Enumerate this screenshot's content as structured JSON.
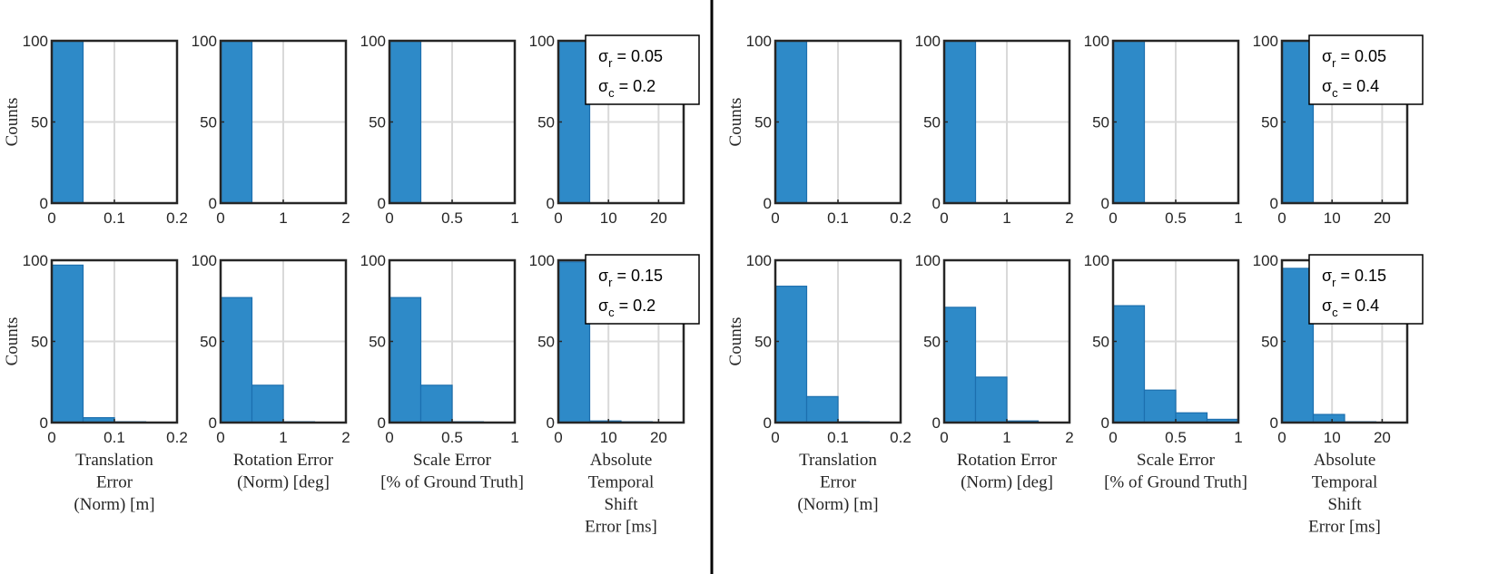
{
  "colors": {
    "bar_fill": "#2e8ac8",
    "bar_edge": "#1c6fae",
    "axis": "#262626",
    "grid": "#d9d9d9",
    "divider": "#000000"
  },
  "chart_data": [
    {
      "group": "left",
      "row": 0,
      "legend": {
        "sigma_r_value": "0.05",
        "sigma_c_value": "0.2"
      },
      "ylabel": "Counts",
      "panels": [
        {
          "type": "bar",
          "xlim": [
            0,
            0.2
          ],
          "ylim": [
            0,
            100
          ],
          "xticks": [
            "0",
            "0.1",
            "0.2"
          ],
          "yticks": [
            "0",
            "50",
            "100"
          ],
          "bin_width": 0.05,
          "bin_edges": [
            0,
            0.05
          ],
          "values": [
            100
          ]
        },
        {
          "type": "bar",
          "xlim": [
            0,
            2
          ],
          "ylim": [
            0,
            100
          ],
          "xticks": [
            "0",
            "1",
            "2"
          ],
          "yticks": [
            "0",
            "50",
            "100"
          ],
          "bin_width": 0.5,
          "bin_edges": [
            0,
            0.5
          ],
          "values": [
            100
          ]
        },
        {
          "type": "bar",
          "xlim": [
            0,
            1
          ],
          "ylim": [
            0,
            100
          ],
          "xticks": [
            "0",
            "0.5",
            "1"
          ],
          "yticks": [
            "0",
            "50",
            "100"
          ],
          "bin_width": 0.25,
          "bin_edges": [
            0,
            0.25
          ],
          "values": [
            100
          ]
        },
        {
          "type": "bar",
          "xlim": [
            0,
            25
          ],
          "ylim": [
            0,
            100
          ],
          "xticks": [
            "0",
            "10",
            "20"
          ],
          "yticks": [
            "0",
            "50",
            "100"
          ],
          "bin_width": 6.25,
          "bin_edges": [
            0,
            6.25
          ],
          "values": [
            100
          ]
        }
      ]
    },
    {
      "group": "left",
      "row": 1,
      "legend": {
        "sigma_r_value": "0.15",
        "sigma_c_value": "0.2"
      },
      "ylabel": "Counts",
      "panels": [
        {
          "type": "bar",
          "xlim": [
            0,
            0.2
          ],
          "ylim": [
            0,
            100
          ],
          "xticks": [
            "0",
            "0.1",
            "0.2"
          ],
          "yticks": [
            "0",
            "50",
            "100"
          ],
          "bin_width": 0.05,
          "bin_edges": [
            0,
            0.05,
            0.1,
            0.15
          ],
          "values": [
            97,
            3,
            0.5
          ],
          "xlabel": [
            "Translation",
            "Error",
            "(Norm) [m]"
          ]
        },
        {
          "type": "bar",
          "xlim": [
            0,
            2
          ],
          "ylim": [
            0,
            100
          ],
          "xticks": [
            "0",
            "1",
            "2"
          ],
          "yticks": [
            "0",
            "50",
            "100"
          ],
          "bin_width": 0.5,
          "bin_edges": [
            0,
            0.5,
            1.0
          ],
          "values": [
            77,
            23,
            0.5
          ],
          "xlabel": [
            "Rotation Error",
            "(Norm) [deg]"
          ]
        },
        {
          "type": "bar",
          "xlim": [
            0,
            1
          ],
          "ylim": [
            0,
            100
          ],
          "xticks": [
            "0",
            "0.5",
            "1"
          ],
          "yticks": [
            "0",
            "50",
            "100"
          ],
          "bin_width": 0.25,
          "bin_edges": [
            0,
            0.25,
            0.5
          ],
          "values": [
            77,
            23,
            0.5
          ],
          "xlabel": [
            "Scale Error",
            "[% of Ground Truth]"
          ]
        },
        {
          "type": "bar",
          "xlim": [
            0,
            25
          ],
          "ylim": [
            0,
            100
          ],
          "xticks": [
            "0",
            "10",
            "20"
          ],
          "yticks": [
            "0",
            "50",
            "100"
          ],
          "bin_width": 6.25,
          "bin_edges": [
            0,
            6.25,
            12.5,
            18.75
          ],
          "values": [
            99,
            1,
            0.5
          ],
          "xlabel": [
            "Absolute",
            "Temporal",
            "Shift",
            "Error [ms]"
          ]
        }
      ]
    },
    {
      "group": "right",
      "row": 0,
      "legend": {
        "sigma_r_value": "0.05",
        "sigma_c_value": "0.4"
      },
      "ylabel": "Counts",
      "panels": [
        {
          "type": "bar",
          "xlim": [
            0,
            0.2
          ],
          "ylim": [
            0,
            100
          ],
          "xticks": [
            "0",
            "0.1",
            "0.2"
          ],
          "yticks": [
            "0",
            "50",
            "100"
          ],
          "bin_width": 0.05,
          "bin_edges": [
            0,
            0.05
          ],
          "values": [
            100
          ]
        },
        {
          "type": "bar",
          "xlim": [
            0,
            2
          ],
          "ylim": [
            0,
            100
          ],
          "xticks": [
            "0",
            "1",
            "2"
          ],
          "yticks": [
            "0",
            "50",
            "100"
          ],
          "bin_width": 0.5,
          "bin_edges": [
            0,
            0.5
          ],
          "values": [
            100
          ]
        },
        {
          "type": "bar",
          "xlim": [
            0,
            1
          ],
          "ylim": [
            0,
            100
          ],
          "xticks": [
            "0",
            "0.5",
            "1"
          ],
          "yticks": [
            "0",
            "50",
            "100"
          ],
          "bin_width": 0.25,
          "bin_edges": [
            0,
            0.25
          ],
          "values": [
            100
          ]
        },
        {
          "type": "bar",
          "xlim": [
            0,
            25
          ],
          "ylim": [
            0,
            100
          ],
          "xticks": [
            "0",
            "10",
            "20"
          ],
          "yticks": [
            "0",
            "50",
            "100"
          ],
          "bin_width": 6.25,
          "bin_edges": [
            0,
            6.25
          ],
          "values": [
            100
          ]
        }
      ]
    },
    {
      "group": "right",
      "row": 1,
      "legend": {
        "sigma_r_value": "0.15",
        "sigma_c_value": "0.4"
      },
      "ylabel": "Counts",
      "panels": [
        {
          "type": "bar",
          "xlim": [
            0,
            0.2
          ],
          "ylim": [
            0,
            100
          ],
          "xticks": [
            "0",
            "0.1",
            "0.2"
          ],
          "yticks": [
            "0",
            "50",
            "100"
          ],
          "bin_width": 0.05,
          "bin_edges": [
            0,
            0.05,
            0.1
          ],
          "values": [
            84,
            16,
            0.5
          ],
          "xlabel": [
            "Translation",
            "Error",
            "(Norm) [m]"
          ]
        },
        {
          "type": "bar",
          "xlim": [
            0,
            2
          ],
          "ylim": [
            0,
            100
          ],
          "xticks": [
            "0",
            "1",
            "2"
          ],
          "yticks": [
            "0",
            "50",
            "100"
          ],
          "bin_width": 0.5,
          "bin_edges": [
            0,
            0.5,
            1.0
          ],
          "values": [
            71,
            28,
            1
          ],
          "xlabel": [
            "Rotation Error",
            "(Norm) [deg]"
          ]
        },
        {
          "type": "bar",
          "xlim": [
            0,
            1
          ],
          "ylim": [
            0,
            100
          ],
          "xticks": [
            "0",
            "0.5",
            "1"
          ],
          "yticks": [
            "0",
            "50",
            "100"
          ],
          "bin_width": 0.25,
          "bin_edges": [
            0,
            0.25,
            0.5,
            0.75
          ],
          "values": [
            72,
            20,
            6,
            2
          ],
          "xlabel": [
            "Scale Error",
            "[% of Ground Truth]"
          ]
        },
        {
          "type": "bar",
          "xlim": [
            0,
            25
          ],
          "ylim": [
            0,
            100
          ],
          "xticks": [
            "0",
            "10",
            "20"
          ],
          "yticks": [
            "0",
            "50",
            "100"
          ],
          "bin_width": 6.25,
          "bin_edges": [
            0,
            6.25,
            12.5
          ],
          "values": [
            95,
            5,
            0.5
          ],
          "xlabel": [
            "Absolute",
            "Temporal",
            "Shift",
            "Error [ms]"
          ]
        }
      ]
    }
  ]
}
